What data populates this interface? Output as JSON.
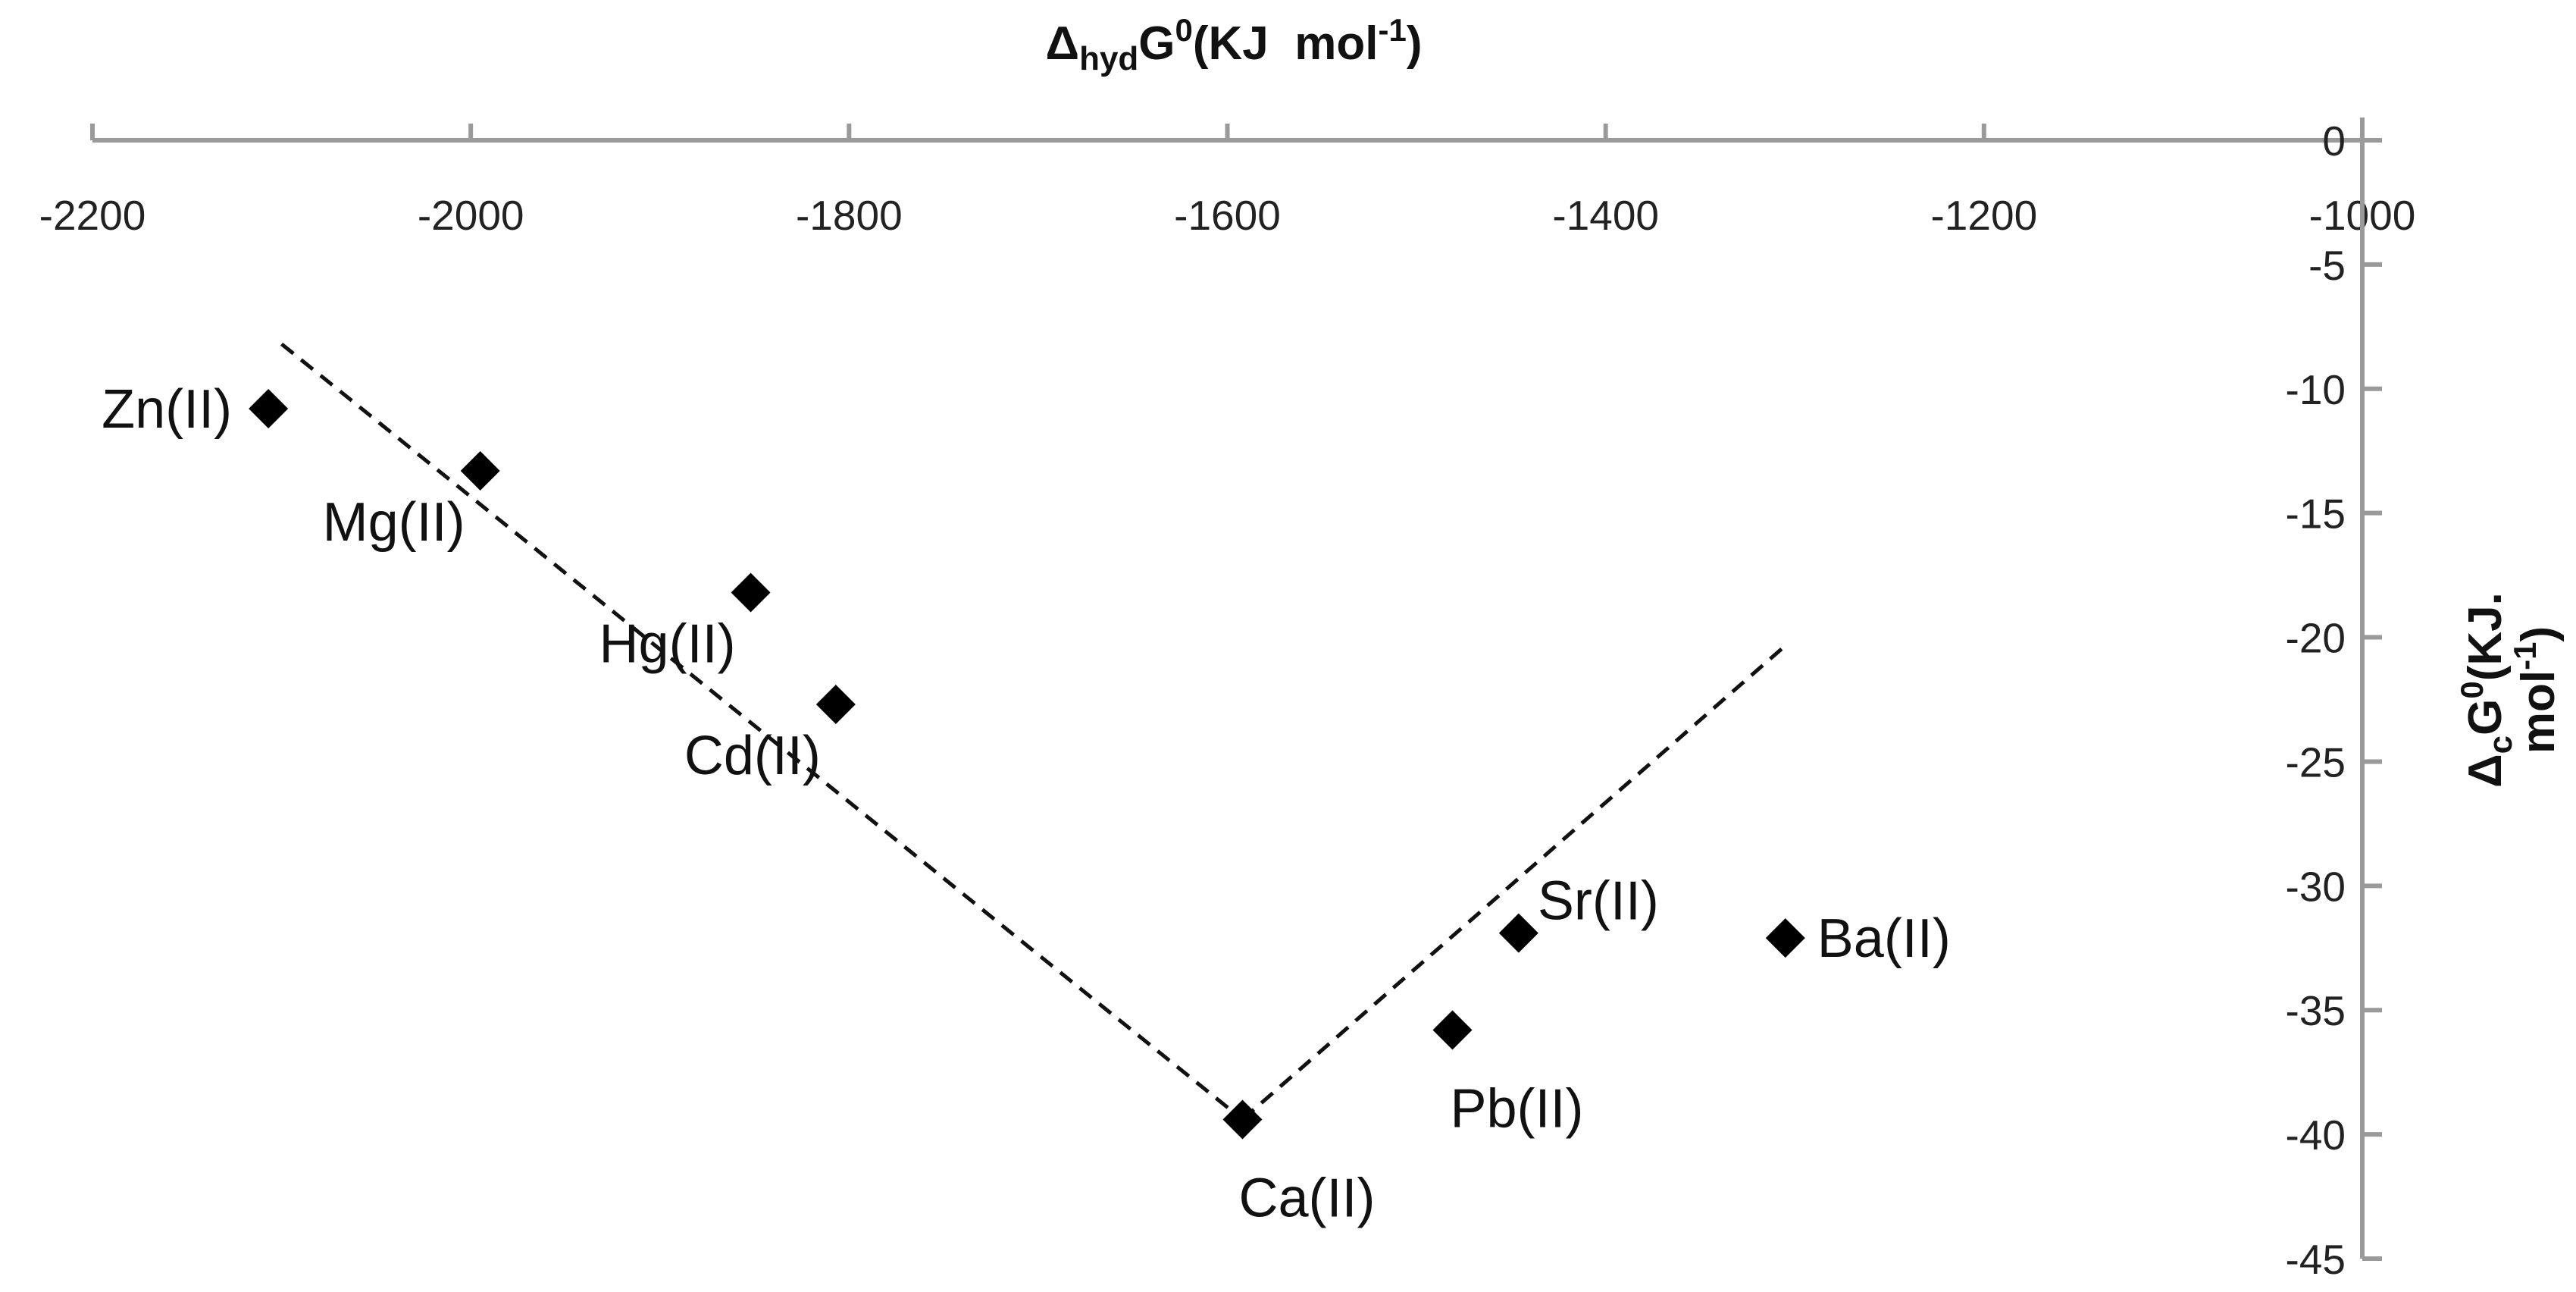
{
  "chart_data": {
    "type": "scatter",
    "title": "",
    "xlabel": {
      "main": "Δ",
      "sub": "hyd",
      "mid": "G",
      "sup": "0",
      "rest": "(KJ  mol",
      "sup2": "-1",
      "end": ")"
    },
    "ylabel": {
      "line1_main": "Δ",
      "line1_sub": "c",
      "line1_mid": "G",
      "line1_sup": "0",
      "line1_rest": "(KJ.",
      "line2": "mol",
      "line2_sup": "-1",
      "line2_end": ")"
    },
    "xlim": [
      -2200,
      -1000
    ],
    "ylim": [
      -45,
      0
    ],
    "x_ticks": [
      -2200,
      -2000,
      -1800,
      -1600,
      -1400,
      -1200,
      -1000
    ],
    "x_tick_labels": [
      "-2200",
      "-2000",
      "-1800",
      "-1600",
      "-1400",
      "-1200",
      "-1000"
    ],
    "y_ticks": [
      0,
      -5,
      -10,
      -15,
      -20,
      -25,
      -30,
      -35,
      -40,
      -45
    ],
    "y_tick_labels": [
      "0",
      "-5",
      "-10",
      "-15",
      "-20",
      "-25",
      "-30",
      "-35",
      "-40",
      "-45"
    ],
    "x_axis_position": "top",
    "y_axis_position": "right",
    "grid": false,
    "marker": "diamond",
    "points": [
      {
        "label": "Zn(II)",
        "x": -2107,
        "y": -10.8,
        "label_side": "left"
      },
      {
        "label": "Mg(II)",
        "x": -1995,
        "y": -13.3,
        "label_side": "below-left"
      },
      {
        "label": "Hg(II)",
        "x": -1852,
        "y": -18.2,
        "label_side": "below-left"
      },
      {
        "label": "Cd(II)",
        "x": -1807,
        "y": -22.7,
        "label_side": "below-left"
      },
      {
        "label": "Ca(II)",
        "x": -1592,
        "y": -39.4,
        "label_side": "below-right"
      },
      {
        "label": "Pb(II)",
        "x": -1481,
        "y": -35.8,
        "label_side": "below-right"
      },
      {
        "label": "Sr(II)",
        "x": -1446,
        "y": -31.9,
        "label_side": "above-right"
      },
      {
        "label": "Ba(II)",
        "x": -1305,
        "y": -32.1,
        "label_side": "right"
      }
    ],
    "trendlines": [
      {
        "x": [
          -2100,
          -1592
        ],
        "y": [
          -8.2,
          -39.4
        ],
        "style": "dashed"
      },
      {
        "x": [
          -1592,
          -1306
        ],
        "y": [
          -39.4,
          -20.4
        ],
        "style": "dashed"
      }
    ]
  }
}
